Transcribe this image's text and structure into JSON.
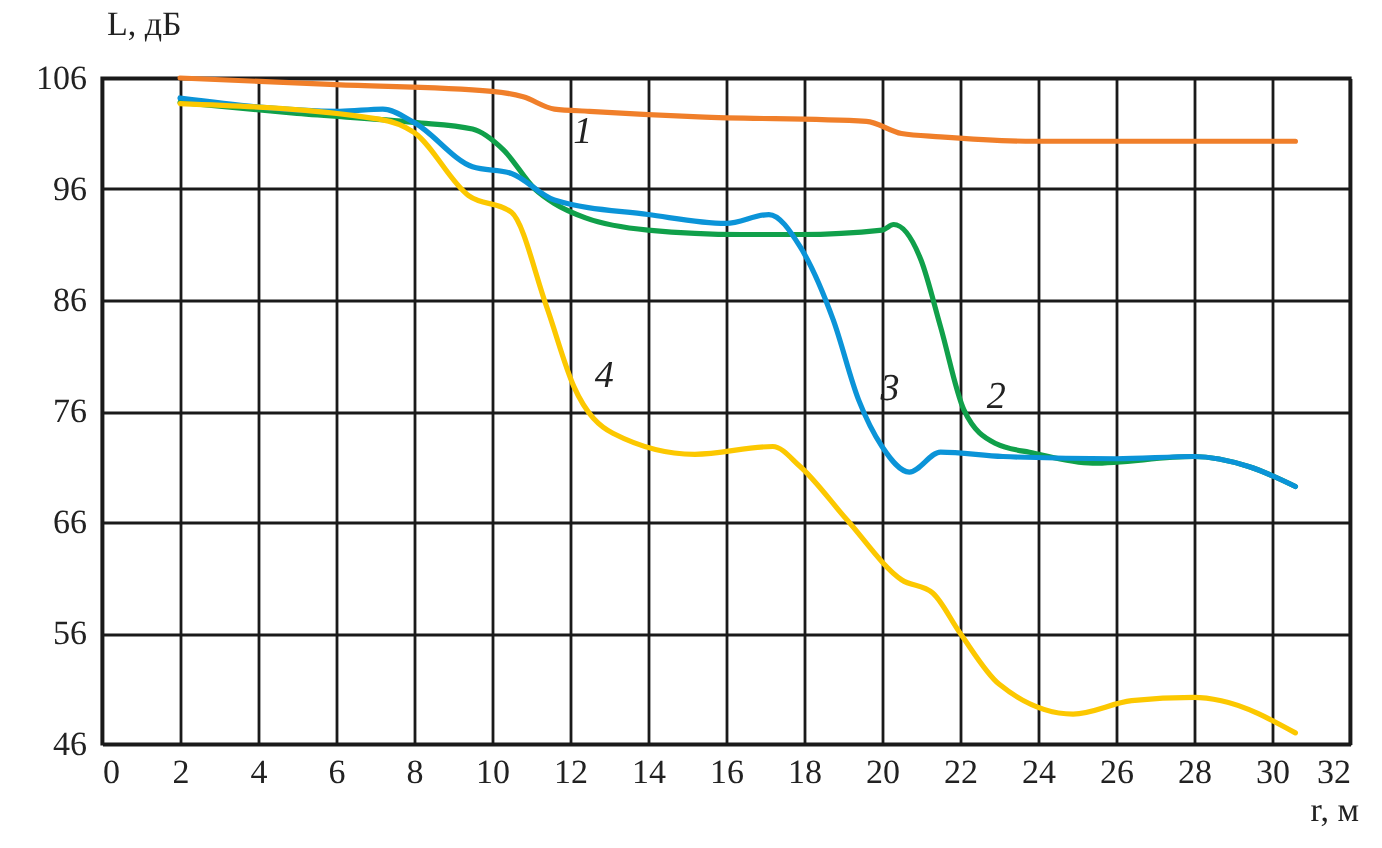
{
  "chart_data": {
    "type": "line",
    "xlabel": "r, м",
    "ylabel": "L, дБ",
    "xlim": [
      0,
      32
    ],
    "ylim": [
      46,
      106
    ],
    "xticks": [
      0,
      2,
      4,
      6,
      8,
      10,
      12,
      14,
      16,
      18,
      20,
      22,
      24,
      26,
      28,
      30,
      32
    ],
    "yticks": [
      46,
      56,
      66,
      76,
      86,
      96,
      106
    ],
    "grid": true,
    "legend": false,
    "marker": "none",
    "line_style": "solid",
    "series": [
      {
        "name": "1",
        "color": "#f07f2a",
        "x": [
          2,
          6,
          10,
          10.8,
          11.6,
          12.5,
          15.3,
          19.6,
          20.5,
          21.5,
          23.9,
          27,
          30.6
        ],
        "values": [
          106,
          105.4,
          104.8,
          104.3,
          103.2,
          103,
          102.5,
          102.1,
          101,
          100.7,
          100.3,
          100.3,
          100.3
        ]
      },
      {
        "name": "2",
        "color": "#10a04a",
        "x": [
          2,
          5,
          8,
          9.5,
          10.3,
          11.1,
          11.6,
          12.4,
          14,
          16.4,
          17.9,
          20,
          20.3,
          21,
          21.5,
          22.1,
          22.9,
          23.9,
          25.4,
          28,
          29.4,
          30.6
        ],
        "values": [
          103.8,
          102.8,
          102,
          101.4,
          99.5,
          96,
          94.7,
          93.4,
          92.3,
          91.9,
          91.9,
          92.3,
          92.8,
          89.6,
          83.6,
          76.1,
          73.1,
          72.2,
          71.3,
          71.9,
          71,
          69.2
        ]
      },
      {
        "name": "3",
        "color": "#0b94d8",
        "x": [
          2,
          6.1,
          7.2,
          8,
          9.5,
          10.5,
          11.6,
          14,
          16,
          17.1,
          17.9,
          18.75,
          19.4,
          20,
          20.7,
          21.5,
          23.1,
          26,
          28,
          29.4,
          30.6
        ],
        "values": [
          104.2,
          103,
          103.2,
          102,
          98,
          97.4,
          95,
          93.7,
          92.9,
          93.7,
          90.8,
          84.2,
          77,
          72.8,
          70.5,
          72.3,
          71.9,
          71.7,
          71.9,
          71,
          69.2
        ]
      },
      {
        "name": "4",
        "color": "#fcc800",
        "x": [
          2,
          7.1,
          8,
          9.4,
          10.5,
          11.4,
          12.1,
          13.1,
          15.2,
          17.2,
          17.9,
          19.1,
          20.5,
          21.3,
          22,
          23,
          24.9,
          26.4,
          28,
          28.7,
          30.6
        ],
        "values": [
          103.7,
          102.3,
          101.1,
          95.4,
          93.9,
          85.4,
          78.2,
          74,
          72.1,
          72.8,
          71,
          66.2,
          60.8,
          59.6,
          56,
          51.4,
          48.7,
          49.9,
          50.2,
          49.9,
          47
        ]
      }
    ]
  }
}
